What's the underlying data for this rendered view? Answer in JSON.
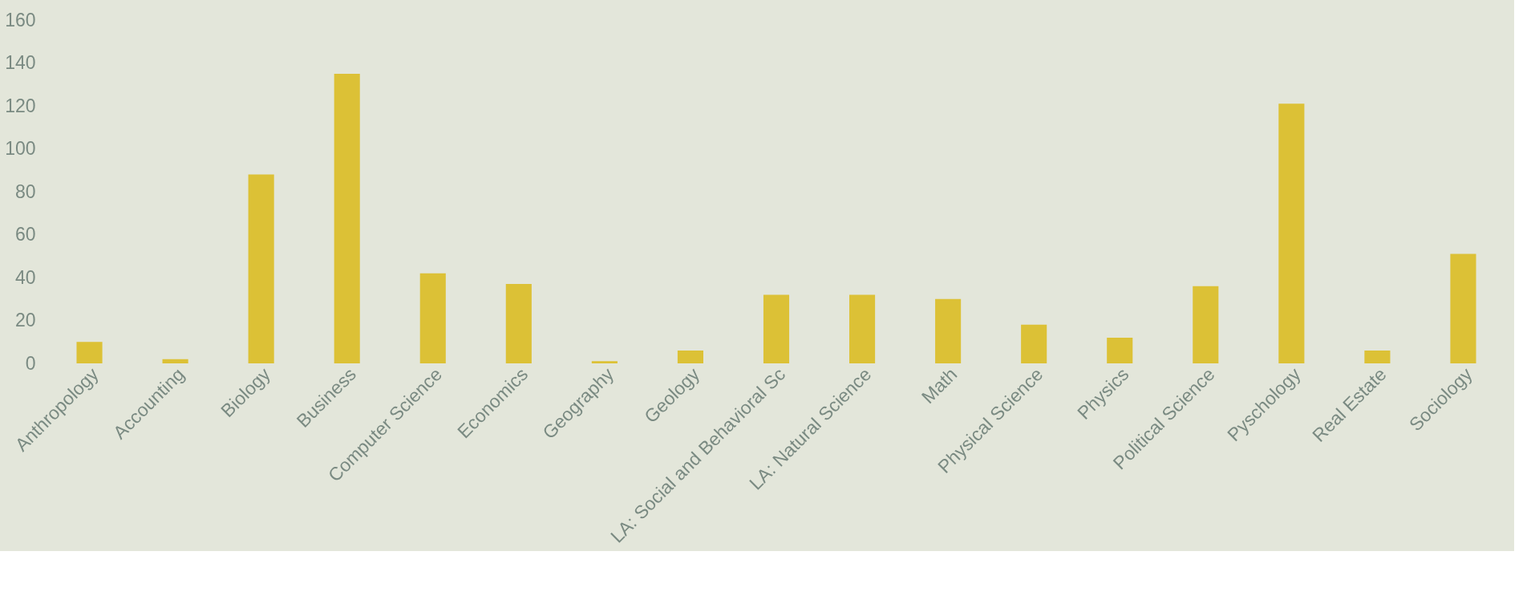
{
  "chart_data": {
    "type": "bar",
    "categories": [
      "Anthropology",
      "Accounting",
      "Biology",
      "Business",
      "Computer Science",
      "Economics",
      "Geography",
      "Geology",
      "LA: Social and Behavioral Sc",
      "LA: Natural Science",
      "Math",
      "Physical Science",
      "Physics",
      "Political Science",
      "Pyschology",
      "Real Estate",
      "Sociology"
    ],
    "values": [
      10,
      2,
      88,
      135,
      42,
      37,
      1,
      6,
      32,
      32,
      30,
      18,
      12,
      36,
      121,
      6,
      51
    ],
    "color": "#dcc136",
    "ylim": [
      0,
      160
    ],
    "yticks": [
      0,
      20,
      40,
      60,
      80,
      100,
      120,
      140,
      160
    ],
    "grid": false
  }
}
